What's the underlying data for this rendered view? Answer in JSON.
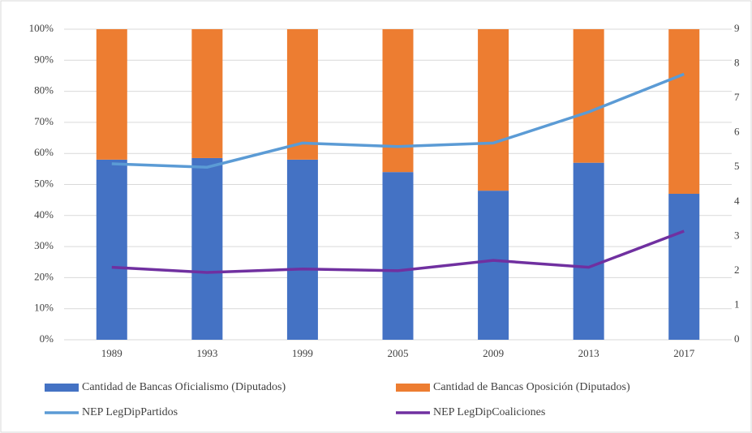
{
  "chart_data": {
    "type": "bar",
    "stacked": true,
    "grid": true,
    "categories": [
      "1989",
      "1993",
      "1999",
      "2005",
      "2009",
      "2013",
      "2017"
    ],
    "ylim": [
      0,
      100
    ],
    "yticks": [
      {
        "value": 0,
        "label": "0%"
      },
      {
        "value": 10,
        "label": "10%"
      },
      {
        "value": 20,
        "label": "20%"
      },
      {
        "value": 30,
        "label": "30%"
      },
      {
        "value": 40,
        "label": "40%"
      },
      {
        "value": 50,
        "label": "50%"
      },
      {
        "value": 60,
        "label": "60%"
      },
      {
        "value": 70,
        "label": "70%"
      },
      {
        "value": 80,
        "label": "80%"
      },
      {
        "value": 90,
        "label": "90%"
      },
      {
        "value": 100,
        "label": "100%"
      }
    ],
    "y2lim": [
      0,
      9
    ],
    "y2ticks": [
      0,
      1,
      2,
      3,
      4,
      5,
      6,
      7,
      8,
      9
    ],
    "series": [
      {
        "name": "Cantidad de Bancas Oficialismo (Diputados)",
        "type": "bar",
        "color": "#4472c4",
        "values": [
          58,
          58.5,
          58,
          54,
          48,
          57,
          47
        ]
      },
      {
        "name": "Cantidad de Bancas Oposición (Diputados)",
        "type": "bar",
        "color": "#ed7d31",
        "values": [
          42,
          41.5,
          42,
          46,
          52,
          43,
          53
        ]
      },
      {
        "name": "NEP LegDipPartidos",
        "type": "line",
        "axis": "y2",
        "color": "#5b9bd5",
        "values": [
          5.1,
          5.0,
          5.7,
          5.6,
          5.7,
          6.6,
          7.7
        ]
      },
      {
        "name": "NEP LegDipCoaliciones",
        "type": "line",
        "axis": "y2",
        "color": "#7030a0",
        "values": [
          2.1,
          1.95,
          2.05,
          2.0,
          2.3,
          2.1,
          3.15
        ]
      }
    ]
  }
}
